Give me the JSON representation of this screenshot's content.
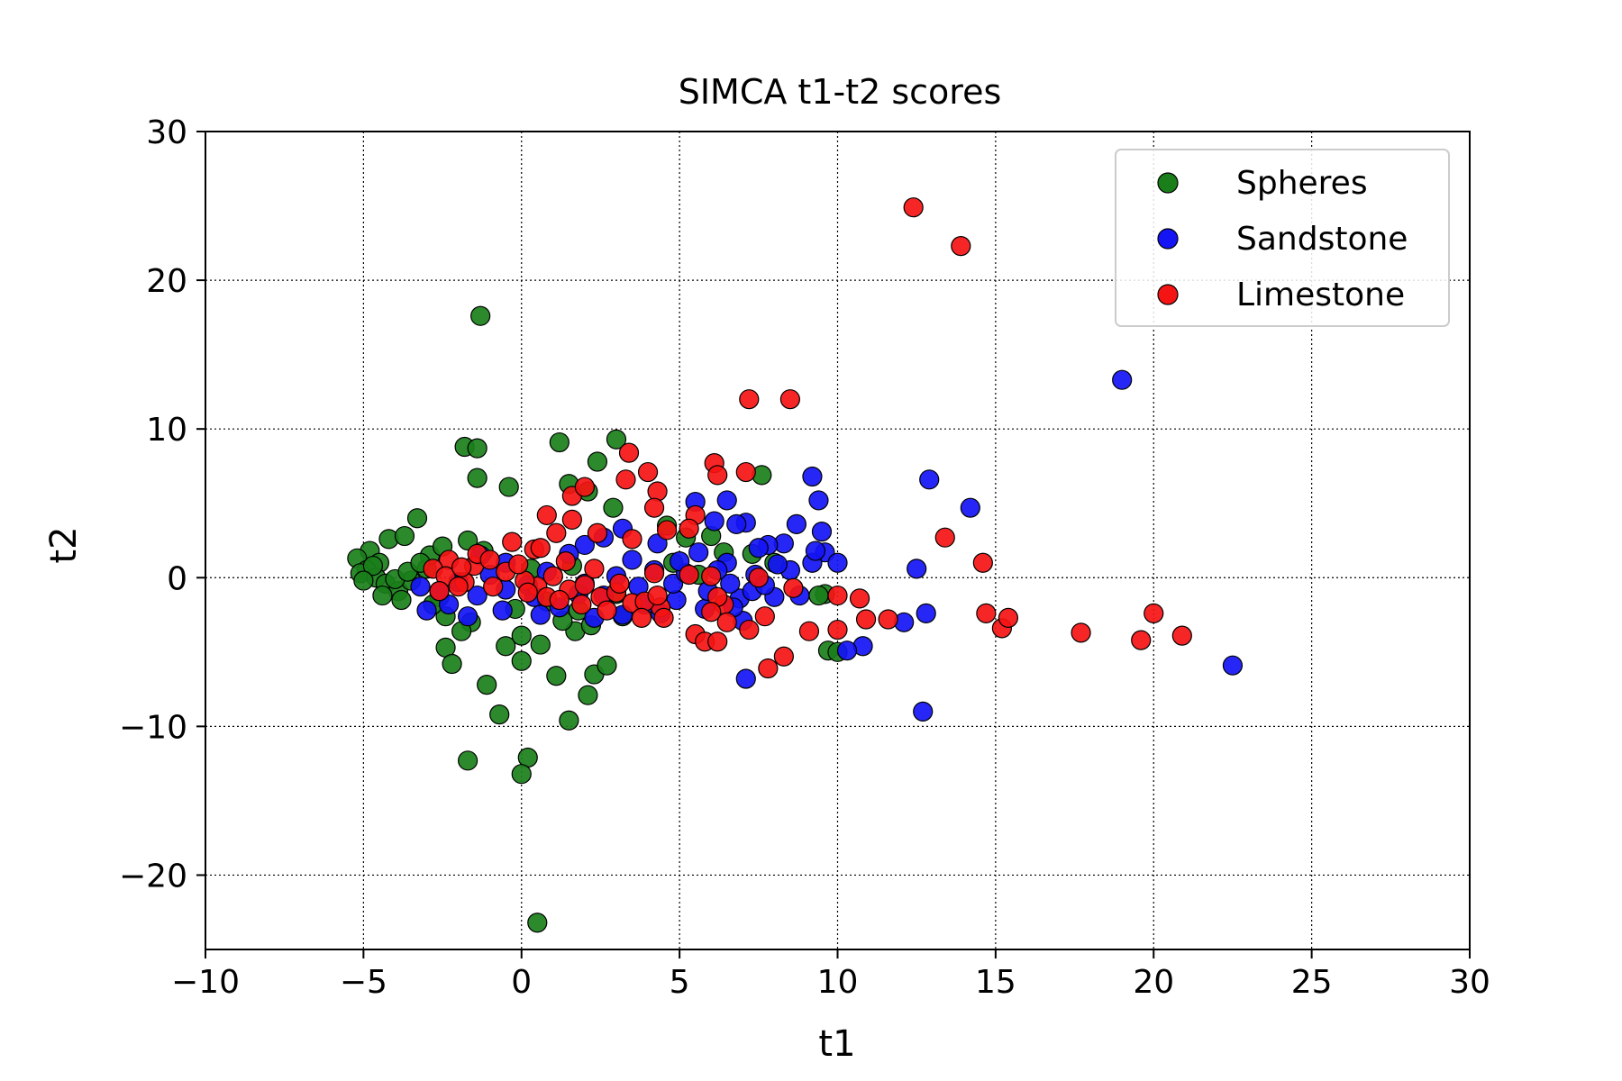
{
  "chart_data": {
    "type": "scatter",
    "title": "SIMCA t1-t2 scores",
    "xlabel": "t1",
    "ylabel": "t2",
    "xlim": [
      -10,
      30
    ],
    "ylim": [
      -25,
      30
    ],
    "xticks": [
      -10,
      -5,
      0,
      5,
      10,
      15,
      20,
      25,
      30
    ],
    "yticks": [
      -20,
      -10,
      0,
      10,
      20,
      30
    ],
    "xtick_labels": [
      "−10",
      "−5",
      "0",
      "5",
      "10",
      "15",
      "20",
      "25",
      "30"
    ],
    "ytick_labels": [
      "−20",
      "−10",
      "0",
      "10",
      "20",
      "30"
    ],
    "grid": true,
    "legend_position": "top-right",
    "series": [
      {
        "name": "Spheres",
        "color": "#1a7f1a",
        "points": [
          [
            -1.3,
            17.6
          ],
          [
            -1.8,
            8.8
          ],
          [
            -1.4,
            8.7
          ],
          [
            -1.4,
            6.7
          ],
          [
            -0.4,
            6.1
          ],
          [
            1.2,
            9.1
          ],
          [
            3.0,
            9.3
          ],
          [
            2.4,
            7.8
          ],
          [
            1.5,
            6.3
          ],
          [
            2.1,
            5.8
          ],
          [
            2.9,
            4.7
          ],
          [
            4.6,
            3.5
          ],
          [
            7.6,
            6.9
          ],
          [
            -3.3,
            4.0
          ],
          [
            -4.2,
            2.6
          ],
          [
            -3.7,
            2.8
          ],
          [
            -4.8,
            1.8
          ],
          [
            -5.2,
            1.3
          ],
          [
            -4.5,
            1.0
          ],
          [
            -4.9,
            0.5
          ],
          [
            -5.1,
            0.3
          ],
          [
            -4.6,
            0.0
          ],
          [
            -4.3,
            -0.4
          ],
          [
            -3.9,
            -0.9
          ],
          [
            -4.4,
            -1.2
          ],
          [
            -3.8,
            -1.5
          ],
          [
            -3.5,
            -0.2
          ],
          [
            -3.0,
            0.6
          ],
          [
            -2.9,
            1.5
          ],
          [
            -2.5,
            2.1
          ],
          [
            -1.7,
            2.5
          ],
          [
            -1.2,
            1.8
          ],
          [
            -2.6,
            -1.3
          ],
          [
            -2.4,
            -2.6
          ],
          [
            -1.6,
            -3.0
          ],
          [
            -1.9,
            -3.6
          ],
          [
            -2.4,
            -4.7
          ],
          [
            -2.2,
            -5.8
          ],
          [
            -1.1,
            -7.2
          ],
          [
            -0.7,
            -9.2
          ],
          [
            -1.7,
            -12.3
          ],
          [
            0.2,
            -12.1
          ],
          [
            0.0,
            -13.2
          ],
          [
            0.5,
            -23.2
          ],
          [
            -0.5,
            -4.6
          ],
          [
            0.0,
            -3.9
          ],
          [
            0.6,
            -4.5
          ],
          [
            0.0,
            -5.6
          ],
          [
            1.1,
            -6.6
          ],
          [
            2.3,
            -6.5
          ],
          [
            2.7,
            -5.9
          ],
          [
            2.1,
            -7.9
          ],
          [
            1.5,
            -9.6
          ],
          [
            1.7,
            -3.6
          ],
          [
            1.3,
            -2.9
          ],
          [
            2.2,
            -3.2
          ],
          [
            3.2,
            -2.6
          ],
          [
            0.8,
            -1.6
          ],
          [
            -0.2,
            -2.1
          ],
          [
            1.8,
            -2.2
          ],
          [
            3.0,
            -1.1
          ],
          [
            5.2,
            2.7
          ],
          [
            6.0,
            2.8
          ],
          [
            6.4,
            1.7
          ],
          [
            7.3,
            1.6
          ],
          [
            8.0,
            1.0
          ],
          [
            9.6,
            -1.1
          ],
          [
            9.4,
            -1.2
          ],
          [
            9.7,
            -4.9
          ],
          [
            10.0,
            -5.0
          ],
          [
            5.6,
            0.2
          ],
          [
            4.8,
            1.0
          ],
          [
            -4.0,
            -0.1
          ],
          [
            -3.6,
            0.4
          ],
          [
            -3.2,
            1.0
          ],
          [
            -4.7,
            0.8
          ],
          [
            -5.0,
            -0.2
          ],
          [
            -2.8,
            -1.8
          ],
          [
            0.3,
            0.6
          ],
          [
            1.6,
            0.8
          ]
        ]
      },
      {
        "name": "Sandstone",
        "color": "#1414f5",
        "points": [
          [
            19.0,
            13.3
          ],
          [
            22.5,
            -5.9
          ],
          [
            12.7,
            -9.0
          ],
          [
            12.9,
            6.6
          ],
          [
            14.2,
            4.7
          ],
          [
            12.5,
            0.6
          ],
          [
            12.8,
            -2.4
          ],
          [
            12.1,
            -3.0
          ],
          [
            10.8,
            -4.6
          ],
          [
            10.3,
            -4.9
          ],
          [
            7.1,
            -6.8
          ],
          [
            9.2,
            6.8
          ],
          [
            9.4,
            5.2
          ],
          [
            9.5,
            3.1
          ],
          [
            9.6,
            1.7
          ],
          [
            10.0,
            1.0
          ],
          [
            8.7,
            3.6
          ],
          [
            8.3,
            2.3
          ],
          [
            7.8,
            2.2
          ],
          [
            7.5,
            2.0
          ],
          [
            7.1,
            3.7
          ],
          [
            6.8,
            3.6
          ],
          [
            6.5,
            5.2
          ],
          [
            5.5,
            5.1
          ],
          [
            6.1,
            3.8
          ],
          [
            5.6,
            1.7
          ],
          [
            6.5,
            1.0
          ],
          [
            7.4,
            0.2
          ],
          [
            8.5,
            0.5
          ],
          [
            9.2,
            1.0
          ],
          [
            8.0,
            -1.3
          ],
          [
            8.8,
            -1.2
          ],
          [
            6.9,
            -1.4
          ],
          [
            5.8,
            -2.1
          ],
          [
            7.0,
            -2.9
          ],
          [
            4.9,
            -1.5
          ],
          [
            3.2,
            3.3
          ],
          [
            2.6,
            2.7
          ],
          [
            2.0,
            2.2
          ],
          [
            1.5,
            1.6
          ],
          [
            3.5,
            1.2
          ],
          [
            4.2,
            0.5
          ],
          [
            4.8,
            -0.4
          ],
          [
            3.9,
            -1.8
          ],
          [
            3.2,
            -2.5
          ],
          [
            2.3,
            -2.7
          ],
          [
            1.2,
            -2.0
          ],
          [
            0.4,
            -1.3
          ],
          [
            -0.5,
            -0.8
          ],
          [
            -1.4,
            -1.2
          ],
          [
            -2.3,
            -1.8
          ],
          [
            -3.0,
            -2.2
          ],
          [
            -2.6,
            -0.9
          ],
          [
            -3.2,
            -0.6
          ],
          [
            -1.3,
            1.5
          ],
          [
            -0.5,
            1.0
          ],
          [
            0.8,
            0.4
          ],
          [
            2.0,
            -0.4
          ],
          [
            3.7,
            -0.6
          ],
          [
            5.2,
            0.3
          ],
          [
            6.2,
            0.5
          ],
          [
            7.3,
            -0.9
          ],
          [
            6.6,
            -0.4
          ],
          [
            5.0,
            1.1
          ],
          [
            4.3,
            2.3
          ],
          [
            3.0,
            0.1
          ],
          [
            1.8,
            -1.1
          ],
          [
            0.2,
            -0.5
          ],
          [
            -1.0,
            0.2
          ],
          [
            -2.0,
            -0.3
          ],
          [
            -1.7,
            -2.6
          ],
          [
            -0.6,
            -2.2
          ],
          [
            0.6,
            -2.5
          ],
          [
            2.6,
            -1.2
          ],
          [
            4.4,
            -2.4
          ],
          [
            5.9,
            -0.9
          ],
          [
            6.7,
            -2.0
          ],
          [
            8.1,
            0.9
          ],
          [
            9.3,
            1.8
          ],
          [
            7.7,
            -0.5
          ]
        ]
      },
      {
        "name": "Limestone",
        "color": "#f51414",
        "points": [
          [
            12.4,
            24.9
          ],
          [
            13.9,
            22.3
          ],
          [
            7.2,
            12.0
          ],
          [
            8.5,
            12.0
          ],
          [
            3.4,
            8.4
          ],
          [
            3.3,
            6.6
          ],
          [
            4.0,
            7.1
          ],
          [
            4.3,
            5.8
          ],
          [
            4.2,
            4.7
          ],
          [
            6.1,
            7.7
          ],
          [
            6.2,
            6.9
          ],
          [
            7.1,
            7.1
          ],
          [
            5.5,
            4.2
          ],
          [
            5.3,
            3.3
          ],
          [
            3.5,
            2.6
          ],
          [
            4.6,
            3.2
          ],
          [
            1.6,
            5.5
          ],
          [
            2.0,
            6.1
          ],
          [
            1.6,
            3.9
          ],
          [
            0.8,
            4.2
          ],
          [
            1.1,
            3.0
          ],
          [
            2.4,
            3.0
          ],
          [
            13.4,
            2.7
          ],
          [
            14.6,
            1.0
          ],
          [
            14.7,
            -2.4
          ],
          [
            15.2,
            -3.4
          ],
          [
            15.4,
            -2.7
          ],
          [
            17.7,
            -3.7
          ],
          [
            19.6,
            -4.2
          ],
          [
            20.0,
            -2.4
          ],
          [
            20.9,
            -3.9
          ],
          [
            10.7,
            -1.4
          ],
          [
            10.0,
            -1.2
          ],
          [
            10.9,
            -2.8
          ],
          [
            11.6,
            -2.8
          ],
          [
            10.0,
            -3.5
          ],
          [
            9.1,
            -3.6
          ],
          [
            8.3,
            -5.3
          ],
          [
            7.8,
            -6.1
          ],
          [
            7.2,
            -3.5
          ],
          [
            7.7,
            -2.6
          ],
          [
            8.6,
            -0.7
          ],
          [
            7.5,
            0.0
          ],
          [
            6.4,
            -1.8
          ],
          [
            6.2,
            -1.3
          ],
          [
            6.0,
            0.1
          ],
          [
            5.3,
            0.2
          ],
          [
            5.5,
            -3.8
          ],
          [
            5.8,
            -4.3
          ],
          [
            6.2,
            -4.3
          ],
          [
            6.5,
            -3.0
          ],
          [
            6.0,
            -2.3
          ],
          [
            4.4,
            -2.0
          ],
          [
            4.2,
            0.3
          ],
          [
            4.5,
            -2.7
          ],
          [
            3.5,
            -1.7
          ],
          [
            2.5,
            -1.3
          ],
          [
            1.5,
            -0.8
          ],
          [
            0.5,
            -0.6
          ],
          [
            -0.5,
            0.4
          ],
          [
            -1.5,
            0.8
          ],
          [
            -2.3,
            1.2
          ],
          [
            -2.8,
            0.6
          ],
          [
            -2.4,
            0.1
          ],
          [
            -1.8,
            -0.3
          ],
          [
            -0.9,
            -0.6
          ],
          [
            0.1,
            -0.2
          ],
          [
            1.0,
            0.1
          ],
          [
            2.0,
            -0.5
          ],
          [
            3.0,
            -1.0
          ],
          [
            3.9,
            -1.6
          ],
          [
            4.3,
            -1.2
          ],
          [
            0.4,
            1.9
          ],
          [
            -0.3,
            2.4
          ],
          [
            -1.4,
            1.6
          ],
          [
            -2.0,
            -0.6
          ],
          [
            0.8,
            -1.3
          ],
          [
            1.9,
            -1.8
          ],
          [
            2.7,
            -2.2
          ],
          [
            3.8,
            -2.7
          ],
          [
            -0.1,
            0.9
          ],
          [
            1.4,
            1.1
          ],
          [
            0.6,
            2.0
          ],
          [
            -1.0,
            1.2
          ],
          [
            2.3,
            0.6
          ],
          [
            0.2,
            -1.0
          ],
          [
            -1.9,
            0.7
          ],
          [
            -2.6,
            -0.9
          ],
          [
            1.2,
            -1.5
          ],
          [
            3.1,
            -0.4
          ]
        ]
      }
    ]
  }
}
